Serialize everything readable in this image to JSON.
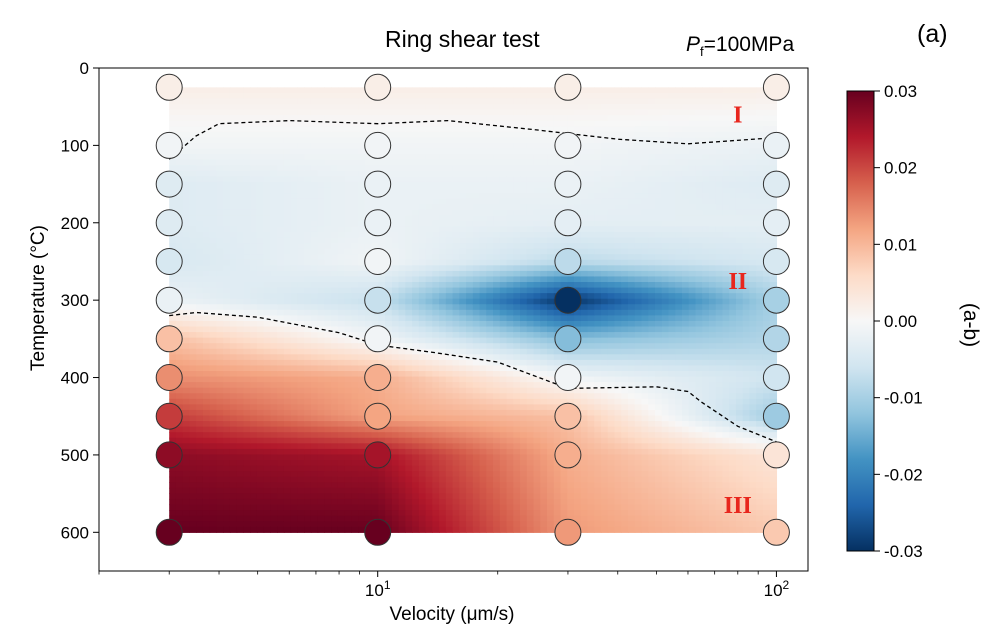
{
  "panel_label": "(a)",
  "pressure_label": {
    "symbol": "P",
    "subscript": "f",
    "value": "=100MPa"
  },
  "chart_data": {
    "type": "heatmap",
    "title": "Ring shear test",
    "xlabel": "Velocity (μm/s)",
    "ylabel": "Temperature (°C)",
    "x_scale": "log",
    "xlim": [
      2.0,
      120
    ],
    "ylim": [
      650,
      0
    ],
    "y_inverted": true,
    "x_ticks": [
      {
        "value": 10,
        "base": "10",
        "exp": "1"
      },
      {
        "value": 100,
        "base": "10",
        "exp": "2"
      }
    ],
    "y_ticks": [
      0,
      100,
      200,
      300,
      400,
      500,
      600
    ],
    "y_tick_labels": [
      "0",
      "100",
      "200",
      "300",
      "400",
      "500",
      "600"
    ],
    "colorbar": {
      "label": "(a-b)",
      "min": -0.03,
      "max": 0.03,
      "ticks": [
        0.03,
        0.02,
        0.01,
        0.0,
        -0.01,
        -0.02,
        -0.03
      ],
      "tick_labels": [
        "0.03",
        "0.02",
        "0.01",
        "0.00",
        "-0.01",
        "-0.02",
        "-0.03"
      ],
      "colormap": "RdBu_r",
      "colors": [
        "#053061",
        "#2166ac",
        "#4393c3",
        "#92c5de",
        "#d1e5f0",
        "#f7f7f7",
        "#fddbc7",
        "#f4a582",
        "#d6604d",
        "#b2182b",
        "#67001f"
      ]
    },
    "velocities": [
      3,
      10,
      30,
      100
    ],
    "temperatures": [
      25,
      100,
      150,
      200,
      250,
      300,
      350,
      400,
      450,
      500,
      600
    ],
    "values": [
      [
        0.002,
        -0.001,
        -0.004,
        -0.004,
        -0.005,
        -0.002,
        0.009,
        0.014,
        0.021,
        0.027,
        0.03
      ],
      [
        0.002,
        -0.001,
        -0.002,
        -0.002,
        -0.001,
        -0.007,
        -0.001,
        0.011,
        0.012,
        0.025,
        0.03
      ],
      [
        0.002,
        -0.001,
        -0.002,
        -0.003,
        -0.008,
        -0.03,
        -0.013,
        -0.001,
        0.009,
        0.011,
        0.013
      ],
      [
        0.002,
        -0.002,
        -0.004,
        -0.003,
        -0.005,
        -0.01,
        -0.009,
        -0.006,
        -0.011,
        0.004,
        0.008
      ]
    ],
    "regions": [
      {
        "label": "I",
        "x": 80,
        "y": 60
      },
      {
        "label": "II",
        "x": 80,
        "y": 275
      },
      {
        "label": "III",
        "x": 80,
        "y": 565
      }
    ],
    "boundary_lines": [
      {
        "name": "I-II boundary",
        "points": [
          [
            3,
            118
          ],
          [
            3.5,
            88
          ],
          [
            4,
            72
          ],
          [
            6,
            68
          ],
          [
            10,
            72
          ],
          [
            15,
            68
          ],
          [
            25,
            80
          ],
          [
            40,
            92
          ],
          [
            60,
            98
          ],
          [
            100,
            90
          ]
        ]
      },
      {
        "name": "II-III boundary",
        "points": [
          [
            3,
            320
          ],
          [
            3.5,
            316
          ],
          [
            5,
            322
          ],
          [
            8,
            342
          ],
          [
            10,
            358
          ],
          [
            14,
            368
          ],
          [
            20,
            380
          ],
          [
            30,
            414
          ],
          [
            50,
            412
          ],
          [
            60,
            418
          ],
          [
            65,
            432
          ],
          [
            80,
            463
          ],
          [
            100,
            483
          ]
        ]
      }
    ],
    "color_accents": {
      "region_labels": "#e8261d",
      "boundary_line": "#000000"
    }
  }
}
